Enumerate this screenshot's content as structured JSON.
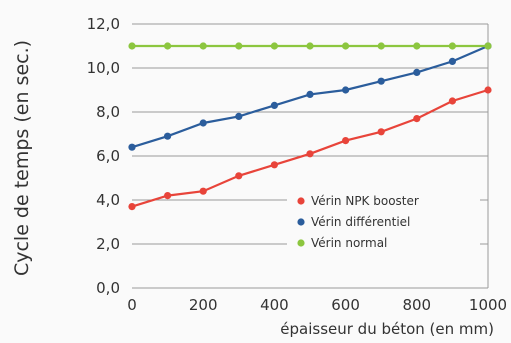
{
  "chart_data": {
    "type": "line",
    "title": "",
    "xlabel": "épaisseur du béton (en mm)",
    "ylabel": "Cycle de temps (en sec.)",
    "xlim": [
      0,
      1000
    ],
    "ylim": [
      0,
      12
    ],
    "x_ticks": [
      "0",
      "200",
      "400",
      "600",
      "800",
      "1000"
    ],
    "y_ticks": [
      "0,0",
      "2,0",
      "4,0",
      "6,0",
      "8,0",
      "10,0",
      "12,0"
    ],
    "grid": "horizontal",
    "legend_position": "bottom-right",
    "x": [
      0,
      100,
      200,
      300,
      400,
      500,
      600,
      700,
      800,
      900,
      1000
    ],
    "series": [
      {
        "name": "Vérin NPK booster",
        "color": "#e8443a",
        "values": [
          3.7,
          4.2,
          4.4,
          5.1,
          5.6,
          6.1,
          6.7,
          7.1,
          7.7,
          8.5,
          9.0
        ]
      },
      {
        "name": "Vérin différentiel",
        "color": "#2b5d9c",
        "values": [
          6.4,
          6.9,
          7.5,
          7.8,
          8.3,
          8.8,
          9.0,
          9.4,
          9.8,
          10.3,
          11.0
        ]
      },
      {
        "name": "Vérin normal",
        "color": "#8cc63f",
        "values": [
          11.0,
          11.0,
          11.0,
          11.0,
          11.0,
          11.0,
          11.0,
          11.0,
          11.0,
          11.0,
          11.0
        ]
      }
    ]
  }
}
